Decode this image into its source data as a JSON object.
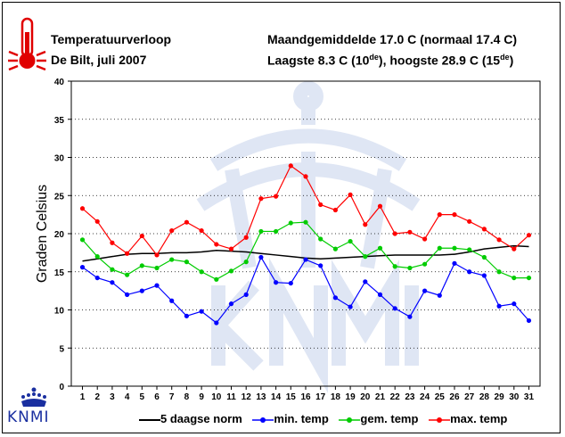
{
  "header": {
    "title": "Temperatuurverloop",
    "location_period": "De Bilt, juli 2007",
    "monthly_avg": "Maandgemiddelde 17.0  C (normaal 17.4  C)",
    "lowest": "Laagste 8.3  C (10",
    "lowest_sup": "de",
    "highest": "), hoogste 28.9  C (15",
    "highest_sup": "de",
    "close": ")"
  },
  "logo": {
    "text": "KNMI",
    "icon": "crown-icon"
  },
  "colors": {
    "norm": "#000000",
    "min": "#0000ff",
    "gem": "#00cc00",
    "max": "#ff0000",
    "watermark": "#dfe6f4"
  },
  "chart_data": {
    "type": "line",
    "xlabel": "",
    "ylabel": "Graden Celsius",
    "ylim": [
      0,
      40
    ],
    "yticks": [
      0,
      5,
      10,
      15,
      20,
      25,
      30,
      35,
      40
    ],
    "grid": true,
    "legend": "bottom",
    "categories": [
      "1",
      "2",
      "3",
      "4",
      "5",
      "6",
      "7",
      "8",
      "9",
      "10",
      "11",
      "12",
      "13",
      "14",
      "15",
      "16",
      "17",
      "18",
      "19",
      "20",
      "21",
      "22",
      "23",
      "24",
      "25",
      "26",
      "27",
      "28",
      "29",
      "30",
      "31"
    ],
    "series": [
      {
        "name": "5 daagse norm",
        "key": "norm",
        "marker": false,
        "values": [
          16.4,
          16.7,
          17.0,
          17.3,
          17.4,
          17.4,
          17.5,
          17.5,
          17.6,
          17.8,
          17.7,
          17.6,
          17.4,
          17.2,
          17.0,
          16.8,
          16.7,
          16.8,
          16.9,
          17.0,
          17.1,
          17.2,
          17.2,
          17.2,
          17.2,
          17.3,
          17.6,
          18.0,
          18.2,
          18.4,
          18.3
        ]
      },
      {
        "name": "min. temp",
        "key": "min",
        "marker": true,
        "values": [
          15.6,
          14.2,
          13.6,
          12.0,
          12.5,
          13.2,
          11.2,
          9.2,
          9.8,
          8.3,
          10.8,
          12.0,
          16.9,
          13.6,
          13.5,
          16.6,
          15.8,
          11.6,
          10.4,
          13.7,
          12.0,
          10.2,
          9.1,
          12.5,
          11.9,
          16.1,
          15.0,
          14.5,
          10.5,
          10.8,
          8.6
        ]
      },
      {
        "name": "gem. temp",
        "key": "gem",
        "marker": true,
        "values": [
          19.2,
          17.0,
          15.3,
          14.6,
          15.8,
          15.5,
          16.6,
          16.3,
          15.0,
          14.0,
          15.1,
          16.3,
          20.3,
          20.3,
          21.4,
          21.5,
          19.3,
          18.0,
          19.0,
          17.0,
          18.1,
          15.7,
          15.5,
          16.0,
          18.1,
          18.1,
          17.9,
          16.9,
          15.0,
          14.2,
          14.2
        ]
      },
      {
        "name": "max. temp",
        "key": "max",
        "marker": true,
        "values": [
          23.3,
          21.6,
          18.8,
          17.4,
          19.7,
          17.2,
          20.4,
          21.5,
          20.4,
          18.6,
          18.0,
          19.5,
          24.6,
          24.9,
          28.9,
          27.5,
          23.8,
          23.1,
          25.1,
          21.2,
          23.6,
          20.0,
          20.2,
          19.3,
          22.5,
          22.5,
          21.6,
          20.6,
          19.2,
          18.0,
          19.8
        ]
      }
    ]
  }
}
